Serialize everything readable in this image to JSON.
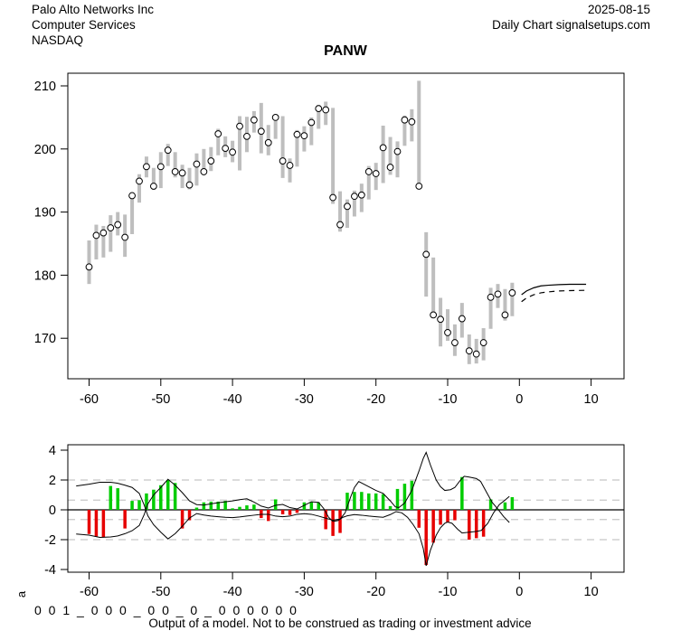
{
  "header": {
    "company": "Palo Alto Networks Inc",
    "sector": "Computer Services",
    "exchange": "NASDAQ",
    "date": "2025-08-15",
    "chart_type": "Daily Chart signalsetups.com"
  },
  "title": "PANW",
  "footer": {
    "side_label": "a",
    "model_code": "0 0 1 _ 0 0 0 _ 0 0 _ 0 _ 0 0 0 0 0 0",
    "disclaimer": "Output of a model. Not to be construed as trading or investment advice"
  },
  "colors": {
    "bar_gray": "#BEBEBE",
    "close_circle_fill": "#FFFFFF",
    "close_circle_stroke": "#000000",
    "positive_green": "#00CC00",
    "negative_red": "#E60000",
    "grid_dash_gray": "#C8C8C8",
    "axis_black": "#000000"
  },
  "chart_data": [
    {
      "type": "bar",
      "subtype": "hlc-price-bars",
      "title": "PANW",
      "xlabel": "",
      "ylabel": "",
      "x_ticks": [
        -60,
        -50,
        -40,
        -30,
        -20,
        -10,
        0,
        10
      ],
      "y_ticks": [
        170,
        180,
        190,
        200,
        210
      ],
      "xlim": [
        -62,
        11
      ],
      "ylim": [
        164,
        212
      ],
      "grid": false,
      "bars_hlc": [
        [
          -60,
          185.5,
          178.6,
          181.3
        ],
        [
          -59,
          188.0,
          182.5,
          186.3
        ],
        [
          -58,
          187.8,
          182.8,
          186.7
        ],
        [
          -57,
          189.5,
          183.7,
          187.5
        ],
        [
          -56,
          190.0,
          186.3,
          188.0
        ],
        [
          -55,
          189.6,
          182.9,
          186.0
        ],
        [
          -54,
          193.0,
          186.5,
          192.6
        ],
        [
          -53,
          196.0,
          191.5,
          194.9
        ],
        [
          -52,
          198.8,
          195.5,
          197.2
        ],
        [
          -51,
          197.0,
          193.5,
          194.1
        ],
        [
          -50,
          199.5,
          193.8,
          197.2
        ],
        [
          -49,
          200.8,
          197.3,
          199.8
        ],
        [
          -48,
          199.5,
          195.5,
          196.4
        ],
        [
          -47,
          197.5,
          193.8,
          196.2
        ],
        [
          -46,
          197.0,
          193.6,
          194.3
        ],
        [
          -45,
          199.3,
          194.2,
          197.6
        ],
        [
          -44,
          200.0,
          195.8,
          196.4
        ],
        [
          -43,
          200.3,
          196.5,
          198.1
        ],
        [
          -42,
          203.2,
          199.0,
          202.4
        ],
        [
          -41,
          202.0,
          198.7,
          200.1
        ],
        [
          -40,
          201.3,
          197.9,
          199.5
        ],
        [
          -39,
          205.2,
          196.6,
          203.6
        ],
        [
          -38,
          205.1,
          199.5,
          202.0
        ],
        [
          -37,
          206.0,
          202.6,
          204.6
        ],
        [
          -36,
          207.3,
          199.3,
          202.8
        ],
        [
          -35,
          203.8,
          199.0,
          201.0
        ],
        [
          -34,
          205.5,
          201.6,
          205.0
        ],
        [
          -33,
          205.2,
          195.4,
          198.1
        ],
        [
          -32,
          198.5,
          194.7,
          197.4
        ],
        [
          -31,
          203.0,
          197.2,
          202.3
        ],
        [
          -30,
          203.6,
          199.6,
          202.1
        ],
        [
          -29,
          205.0,
          200.6,
          204.2
        ],
        [
          -28,
          207.0,
          203.2,
          206.4
        ],
        [
          -27,
          207.5,
          203.8,
          206.2
        ],
        [
          -26,
          206.5,
          191.3,
          192.3
        ],
        [
          -25,
          193.3,
          186.9,
          188.0
        ],
        [
          -24,
          192.0,
          187.5,
          190.9
        ],
        [
          -23,
          193.4,
          189.3,
          192.5
        ],
        [
          -22,
          194.5,
          190.0,
          192.7
        ],
        [
          -21,
          197.3,
          192.0,
          196.4
        ],
        [
          -20,
          197.8,
          193.5,
          196.1
        ],
        [
          -19,
          203.7,
          194.6,
          200.2
        ],
        [
          -18,
          201.9,
          195.9,
          197.1
        ],
        [
          -17,
          201.2,
          195.5,
          199.6
        ],
        [
          -16,
          205.3,
          200.5,
          204.6
        ],
        [
          -15,
          206.3,
          201.2,
          204.3
        ],
        [
          -14,
          210.8,
          193.9,
          194.1
        ],
        [
          -13,
          186.8,
          176.6,
          183.3
        ],
        [
          -12,
          182.8,
          173.2,
          173.7
        ],
        [
          -11,
          176.4,
          168.7,
          173.0
        ],
        [
          -10,
          174.6,
          169.6,
          170.9
        ],
        [
          -9,
          172.2,
          167.2,
          169.3
        ],
        [
          -8,
          175.6,
          170.1,
          173.1
        ],
        [
          -7,
          170.6,
          165.9,
          168.0
        ],
        [
          -6,
          169.9,
          166.0,
          167.5
        ],
        [
          -5,
          171.6,
          166.5,
          169.3
        ],
        [
          -4,
          178.0,
          171.5,
          176.5
        ],
        [
          -3,
          178.6,
          174.8,
          177.0
        ],
        [
          -2,
          177.8,
          172.8,
          173.7
        ],
        [
          -1,
          178.8,
          173.5,
          177.2
        ]
      ],
      "forecast_solid": [
        [
          0.3,
          176.9
        ],
        [
          1,
          177.5
        ],
        [
          2,
          178.0
        ],
        [
          3,
          178.3
        ],
        [
          4,
          178.4
        ],
        [
          5.5,
          178.5
        ],
        [
          7,
          178.55
        ],
        [
          9.3,
          178.55
        ]
      ],
      "forecast_dashed": [
        [
          0.3,
          175.8
        ],
        [
          1,
          176.4
        ],
        [
          2,
          176.9
        ],
        [
          3,
          177.2
        ],
        [
          4,
          177.35
        ],
        [
          5.5,
          177.5
        ],
        [
          7,
          177.55
        ],
        [
          9.3,
          177.6
        ]
      ]
    },
    {
      "type": "bar",
      "subtype": "oscillator-histogram-with-signal-lines",
      "title": "",
      "xlabel": "",
      "ylabel": "a",
      "x_ticks": [
        -60,
        -50,
        -40,
        -30,
        -20,
        -10,
        0,
        10
      ],
      "y_ticks": [
        -4,
        -2,
        0,
        2,
        4
      ],
      "xlim": [
        -62,
        11
      ],
      "ylim": [
        -4.3,
        4.3
      ],
      "dashed_gridlines": [
        2,
        0.65,
        -0.65,
        -2
      ],
      "zero_line": 0,
      "histogram": [
        [
          -60,
          -1.62
        ],
        [
          -59,
          -1.78
        ],
        [
          -58,
          -1.82
        ],
        [
          -57,
          1.6
        ],
        [
          -56,
          1.45
        ],
        [
          -55,
          -1.25
        ],
        [
          -54,
          0.6
        ],
        [
          -53,
          0.65
        ],
        [
          -52,
          1.1
        ],
        [
          -51,
          1.35
        ],
        [
          -50,
          1.65
        ],
        [
          -49,
          2.0
        ],
        [
          -48,
          1.8
        ],
        [
          -47,
          -1.25
        ],
        [
          -46,
          -0.7
        ],
        [
          -45,
          0.15
        ],
        [
          -44,
          0.5
        ],
        [
          -43,
          0.55
        ],
        [
          -42,
          0.55
        ],
        [
          -41,
          0.6
        ],
        [
          -40,
          0.1
        ],
        [
          -39,
          0.2
        ],
        [
          -38,
          0.3
        ],
        [
          -37,
          0.35
        ],
        [
          -36,
          -0.55
        ],
        [
          -35,
          -0.75
        ],
        [
          -34,
          0.7
        ],
        [
          -33,
          -0.3
        ],
        [
          -32,
          -0.35
        ],
        [
          -31,
          -0.2
        ],
        [
          -30,
          0.5
        ],
        [
          -29,
          0.55
        ],
        [
          -28,
          0.5
        ],
        [
          -27,
          -1.3
        ],
        [
          -26,
          -1.75
        ],
        [
          -25,
          -1.55
        ],
        [
          -24,
          1.15
        ],
        [
          -23,
          1.2
        ],
        [
          -22,
          1.2
        ],
        [
          -21,
          1.1
        ],
        [
          -20,
          1.1
        ],
        [
          -19,
          1.05
        ],
        [
          -18,
          0.25
        ],
        [
          -17,
          1.4
        ],
        [
          -16,
          1.75
        ],
        [
          -15,
          1.95
        ],
        [
          -14,
          -1.2
        ],
        [
          -13,
          -3.7
        ],
        [
          -12,
          -2.2
        ],
        [
          -11,
          -1.0
        ],
        [
          -10,
          -0.85
        ],
        [
          -9,
          -0.7
        ],
        [
          -8,
          2.2
        ],
        [
          -7,
          -2.0
        ],
        [
          -6,
          -1.9
        ],
        [
          -5,
          -1.8
        ],
        [
          -4,
          0.7
        ],
        [
          -3,
          0.05
        ],
        [
          -2,
          0.5
        ],
        [
          -1,
          0.85
        ]
      ],
      "line1": [
        [
          -61.8,
          1.6
        ],
        [
          -60,
          1.72
        ],
        [
          -58.5,
          1.85
        ],
        [
          -57,
          1.85
        ],
        [
          -56,
          1.78
        ],
        [
          -55,
          1.65
        ],
        [
          -54,
          1.5
        ],
        [
          -53,
          1.1
        ],
        [
          -52.3,
          0.3
        ],
        [
          -51.8,
          -0.4
        ],
        [
          -51,
          -1.0
        ],
        [
          -50,
          -1.5
        ],
        [
          -49,
          -1.95
        ],
        [
          -48,
          -1.6
        ],
        [
          -47,
          -1.1
        ],
        [
          -46,
          -0.55
        ],
        [
          -45,
          -0.25
        ],
        [
          -44,
          -0.35
        ],
        [
          -43,
          -0.42
        ],
        [
          -42,
          -0.46
        ],
        [
          -41,
          -0.5
        ],
        [
          -40,
          -0.52
        ],
        [
          -39,
          -0.48
        ],
        [
          -38,
          -0.42
        ],
        [
          -37,
          -0.36
        ],
        [
          -36,
          -0.3
        ],
        [
          -35,
          -0.3
        ],
        [
          -34,
          -0.42
        ],
        [
          -33,
          -0.46
        ],
        [
          -32,
          -0.42
        ],
        [
          -31,
          -0.3
        ],
        [
          -30,
          -0.26
        ],
        [
          -29,
          -0.3
        ],
        [
          -28,
          -0.42
        ],
        [
          -27,
          -0.56
        ],
        [
          -26,
          -0.7
        ],
        [
          -25,
          -0.62
        ],
        [
          -24.3,
          -0.2
        ],
        [
          -23.5,
          0.9
        ],
        [
          -23,
          1.5
        ],
        [
          -22.4,
          1.9
        ],
        [
          -22,
          1.8
        ],
        [
          -21,
          1.55
        ],
        [
          -20,
          1.3
        ],
        [
          -19,
          1.1
        ],
        [
          -18,
          0.6
        ],
        [
          -17.3,
          0.2
        ],
        [
          -16.8,
          0.15
        ],
        [
          -16,
          0.45
        ],
        [
          -15,
          1.3
        ],
        [
          -14,
          2.6
        ],
        [
          -13.4,
          3.45
        ],
        [
          -13,
          3.85
        ],
        [
          -12.4,
          3.0
        ],
        [
          -11.6,
          2.0
        ],
        [
          -11,
          1.55
        ],
        [
          -10.4,
          1.3
        ],
        [
          -9.6,
          1.35
        ],
        [
          -9,
          1.5
        ],
        [
          -8.2,
          2.0
        ],
        [
          -7.7,
          2.25
        ],
        [
          -7,
          2.2
        ],
        [
          -6,
          2.1
        ],
        [
          -5.4,
          1.9
        ],
        [
          -4.6,
          1.2
        ],
        [
          -3.8,
          0.5
        ],
        [
          -3,
          0.05
        ],
        [
          -2.2,
          -0.45
        ],
        [
          -1.4,
          -0.85
        ]
      ],
      "line2": [
        [
          -61.8,
          -1.62
        ],
        [
          -60,
          -1.7
        ],
        [
          -58.5,
          -1.85
        ],
        [
          -57,
          -1.82
        ],
        [
          -56,
          -1.75
        ],
        [
          -55,
          -1.6
        ],
        [
          -54,
          -1.4
        ],
        [
          -53,
          -1.05
        ],
        [
          -52.3,
          -0.3
        ],
        [
          -51.8,
          0.4
        ],
        [
          -51,
          1.0
        ],
        [
          -50,
          1.5
        ],
        [
          -49,
          2.05
        ],
        [
          -48,
          1.65
        ],
        [
          -47,
          1.15
        ],
        [
          -46,
          0.6
        ],
        [
          -45,
          0.35
        ],
        [
          -44,
          0.32
        ],
        [
          -43,
          0.4
        ],
        [
          -42,
          0.48
        ],
        [
          -41,
          0.54
        ],
        [
          -40,
          0.6
        ],
        [
          -39,
          0.68
        ],
        [
          -38,
          0.74
        ],
        [
          -37,
          0.52
        ],
        [
          -36,
          0.25
        ],
        [
          -35,
          0.12
        ],
        [
          -34,
          0.3
        ],
        [
          -33,
          0.36
        ],
        [
          -32,
          0.15
        ],
        [
          -31,
          0.06
        ],
        [
          -30,
          0.3
        ],
        [
          -29,
          0.54
        ],
        [
          -28,
          0.5
        ],
        [
          -27.3,
          0.1
        ],
        [
          -26.6,
          -0.5
        ],
        [
          -26,
          -0.78
        ],
        [
          -25.3,
          -0.72
        ],
        [
          -24.6,
          -0.5
        ],
        [
          -24,
          -0.4
        ],
        [
          -23,
          -0.32
        ],
        [
          -22,
          -0.36
        ],
        [
          -21,
          -0.42
        ],
        [
          -20,
          -0.46
        ],
        [
          -19,
          -0.5
        ],
        [
          -18,
          -0.32
        ],
        [
          -17.2,
          -0.12
        ],
        [
          -16.4,
          -0.2
        ],
        [
          -15.6,
          -0.5
        ],
        [
          -14.8,
          -1.0
        ],
        [
          -14,
          -1.6
        ],
        [
          -13.4,
          -2.6
        ],
        [
          -13,
          -3.75
        ],
        [
          -12.4,
          -2.7
        ],
        [
          -11.6,
          -1.7
        ],
        [
          -11,
          -1.2
        ],
        [
          -10.4,
          -0.9
        ],
        [
          -10,
          -0.82
        ],
        [
          -9.4,
          -0.9
        ],
        [
          -8.6,
          -1.3
        ],
        [
          -8,
          -1.55
        ],
        [
          -7,
          -1.5
        ],
        [
          -6,
          -1.45
        ],
        [
          -5.3,
          -1.38
        ],
        [
          -4.4,
          -0.9
        ],
        [
          -3.6,
          -0.2
        ],
        [
          -2.8,
          0.35
        ],
        [
          -2,
          0.65
        ],
        [
          -1.4,
          0.9
        ]
      ]
    }
  ]
}
